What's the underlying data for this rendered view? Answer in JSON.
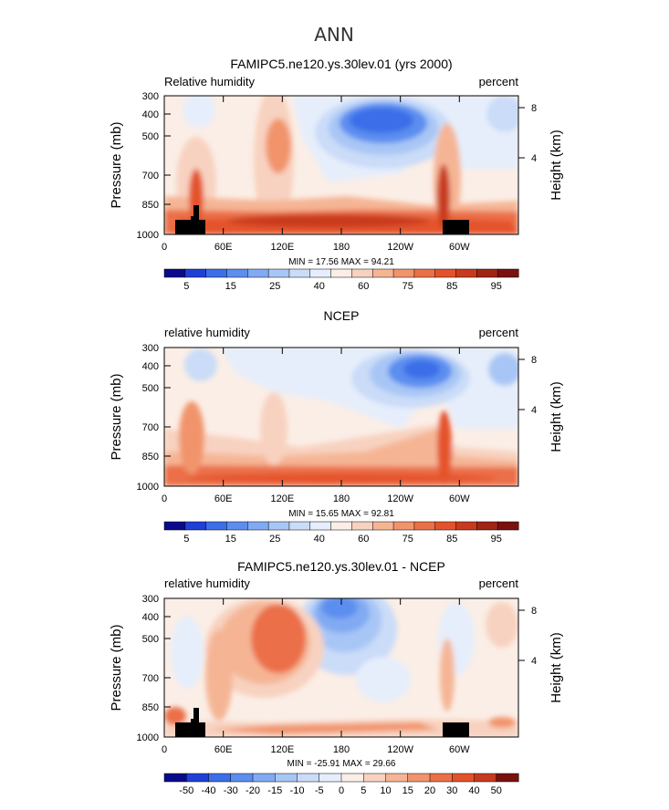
{
  "figure": {
    "title": "ANN"
  },
  "chart_data": [
    {
      "type": "heatmap",
      "title": "FAMIPC5.ne120.ys.30lev.01 (yrs 2000)",
      "variable_label": "Relative humidity",
      "units_label": "percent",
      "ylabel": "Pressure (mb)",
      "ylabel_right": "Height (km)",
      "x_ticks": [
        "0",
        "60E",
        "120E",
        "180",
        "120W",
        "60W"
      ],
      "y_ticks": [
        "300",
        "400",
        "500",
        "700",
        "850",
        "1000"
      ],
      "right_ticks": [
        "8",
        "4"
      ],
      "ylim": [
        1000,
        300
      ],
      "stats": "MIN =   17.56   MAX =   94.21",
      "min": 17.56,
      "max": 94.21,
      "colorbar": {
        "labels": [
          "5",
          "15",
          "25",
          "40",
          "60",
          "75",
          "85",
          "95"
        ],
        "colors": [
          "#0a0a8c",
          "#1f3fd6",
          "#3b6ee8",
          "#5c8ef0",
          "#82aaf2",
          "#a8c6f5",
          "#cadcf8",
          "#e6eefb",
          "#fbeee6",
          "#f8d2c0",
          "#f5b595",
          "#f1946c",
          "#eb7048",
          "#e4522a",
          "#c83a1e",
          "#a02414",
          "#7a1010"
        ]
      }
    },
    {
      "type": "heatmap",
      "title": "NCEP",
      "variable_label": "relative humidity",
      "units_label": "percent",
      "ylabel": "Pressure (mb)",
      "ylabel_right": "Height (km)",
      "x_ticks": [
        "0",
        "60E",
        "120E",
        "180",
        "120W",
        "60W"
      ],
      "y_ticks": [
        "300",
        "400",
        "500",
        "700",
        "850",
        "1000"
      ],
      "right_ticks": [
        "8",
        "4"
      ],
      "ylim": [
        1000,
        300
      ],
      "stats": "MIN =   15.65   MAX =   92.81",
      "min": 15.65,
      "max": 92.81,
      "colorbar": {
        "labels": [
          "5",
          "15",
          "25",
          "40",
          "60",
          "75",
          "85",
          "95"
        ],
        "colors": [
          "#0a0a8c",
          "#1f3fd6",
          "#3b6ee8",
          "#5c8ef0",
          "#82aaf2",
          "#a8c6f5",
          "#cadcf8",
          "#e6eefb",
          "#fbeee6",
          "#f8d2c0",
          "#f5b595",
          "#f1946c",
          "#eb7048",
          "#e4522a",
          "#c83a1e",
          "#a02414",
          "#7a1010"
        ]
      }
    },
    {
      "type": "heatmap",
      "title": "FAMIPC5.ne120.ys.30lev.01 - NCEP",
      "variable_label": "relative humidity",
      "units_label": "percent",
      "ylabel": "Pressure (mb)",
      "ylabel_right": "Height (km)",
      "x_ticks": [
        "0",
        "60E",
        "120E",
        "180",
        "120W",
        "60W"
      ],
      "y_ticks": [
        "300",
        "400",
        "500",
        "700",
        "850",
        "1000"
      ],
      "right_ticks": [
        "8",
        "4"
      ],
      "ylim": [
        1000,
        300
      ],
      "stats": "MIN =  -25.91   MAX =   29.66",
      "min": -25.91,
      "max": 29.66,
      "colorbar": {
        "labels": [
          "-50",
          "-40",
          "-30",
          "-20",
          "-15",
          "-10",
          "-5",
          "0",
          "5",
          "10",
          "15",
          "20",
          "30",
          "40",
          "50"
        ],
        "colors": [
          "#0a0a8c",
          "#1f3fd6",
          "#3b6ee8",
          "#5c8ef0",
          "#82aaf2",
          "#a8c6f5",
          "#cadcf8",
          "#e6eefb",
          "#fbeee6",
          "#f8d2c0",
          "#f5b595",
          "#f1946c",
          "#eb7048",
          "#e4522a",
          "#c83a1e",
          "#7a1010"
        ]
      }
    }
  ]
}
